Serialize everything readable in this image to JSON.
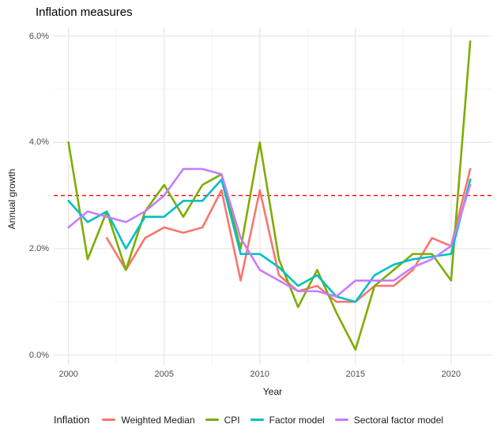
{
  "header": {
    "title": "Inflation measures"
  },
  "chart_data": {
    "type": "line",
    "title": "Inflation measures",
    "xlabel": "Year",
    "ylabel": "Annual growth",
    "x_ticks": [
      2000,
      2005,
      2010,
      2015,
      2020
    ],
    "x_tick_labels": [
      "2000",
      "2005",
      "2010",
      "2015",
      "2020"
    ],
    "x_minor_ticks": [
      2002.5,
      2007.5,
      2012.5,
      2017.5
    ],
    "y_ticks": [
      0,
      2,
      4,
      6
    ],
    "y_tick_labels": [
      "0.0%",
      "2.0%",
      "4.0%",
      "6.0%"
    ],
    "y_minor_ticks": [
      1,
      3,
      5
    ],
    "xlim": [
      1999.2,
      2022.1
    ],
    "ylim": [
      -0.19,
      6.16
    ],
    "grid": "major+minor",
    "grid_major_color": "#e8e8e8",
    "grid_minor_color": "#f2f2f2",
    "reference_line": {
      "value": 3.0,
      "style": "dashed",
      "color": "#ff0000"
    },
    "legend": {
      "title": "Inflation",
      "position": "bottom"
    },
    "series": [
      {
        "name": "Weighted Median",
        "color": "#F8766D",
        "x": [
          2002,
          2003,
          2004,
          2005,
          2006,
          2007,
          2008,
          2009,
          2010,
          2011,
          2012,
          2013,
          2014,
          2015,
          2016,
          2017,
          2018,
          2019,
          2020,
          2021
        ],
        "y": [
          2.2,
          1.6,
          2.2,
          2.4,
          2.3,
          2.4,
          3.1,
          1.4,
          3.1,
          1.5,
          1.2,
          1.3,
          1.0,
          1.0,
          1.3,
          1.3,
          1.6,
          2.2,
          2.05,
          3.5
        ]
      },
      {
        "name": "CPI",
        "color": "#7CAE00",
        "x": [
          2000,
          2001,
          2002,
          2003,
          2004,
          2005,
          2006,
          2007,
          2008,
          2009,
          2010,
          2011,
          2012,
          2013,
          2014,
          2015,
          2016,
          2017,
          2018,
          2019,
          2020,
          2021
        ],
        "y": [
          4.0,
          1.8,
          2.7,
          1.6,
          2.7,
          3.2,
          2.6,
          3.2,
          3.4,
          2.0,
          4.0,
          1.8,
          0.9,
          1.6,
          0.8,
          0.1,
          1.3,
          1.6,
          1.9,
          1.9,
          1.4,
          5.9
        ]
      },
      {
        "name": "Factor model",
        "color": "#00BFC4",
        "x": [
          2000,
          2001,
          2002,
          2003,
          2004,
          2005,
          2006,
          2007,
          2008,
          2009,
          2010,
          2011,
          2012,
          2013,
          2014,
          2015,
          2016,
          2017,
          2018,
          2019,
          2020,
          2021
        ],
        "y": [
          2.9,
          2.5,
          2.7,
          2.0,
          2.6,
          2.6,
          2.9,
          2.9,
          3.3,
          1.9,
          1.9,
          1.65,
          1.3,
          1.5,
          1.1,
          1.0,
          1.5,
          1.7,
          1.8,
          1.85,
          1.9,
          3.3
        ]
      },
      {
        "name": "Sectoral factor model",
        "color": "#C77CFF",
        "x": [
          2000,
          2001,
          2002,
          2003,
          2004,
          2005,
          2006,
          2007,
          2008,
          2009,
          2010,
          2011,
          2012,
          2013,
          2014,
          2015,
          2016,
          2017,
          2018,
          2019,
          2020,
          2021
        ],
        "y": [
          2.4,
          2.7,
          2.6,
          2.5,
          2.7,
          3.0,
          3.5,
          3.5,
          3.4,
          2.2,
          1.6,
          1.4,
          1.2,
          1.2,
          1.1,
          1.4,
          1.4,
          1.4,
          1.65,
          1.8,
          2.05,
          3.2
        ]
      }
    ]
  }
}
